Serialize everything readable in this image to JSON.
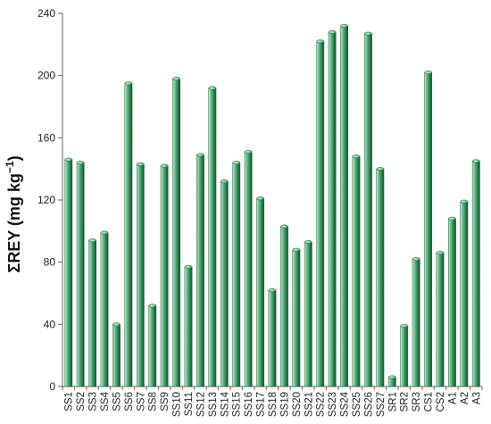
{
  "chart_data": {
    "type": "bar",
    "ylabel": "ΣREY (mg kg",
    "ylabel_sup": "−1",
    "ylabel_close": ")",
    "ylim": [
      0,
      240
    ],
    "yticks": [
      0,
      40,
      80,
      120,
      160,
      200,
      240
    ],
    "grid": false,
    "legend": "none",
    "bar_color": "#2e8b57",
    "categories": [
      "SS1",
      "SS2",
      "SS3",
      "SS4",
      "SS5",
      "SS6",
      "SS7",
      "SS8",
      "SS9",
      "SS10",
      "SS11",
      "SS12",
      "SS13",
      "SS14",
      "SS15",
      "SS16",
      "SS17",
      "SS18",
      "SS19",
      "SS20",
      "SS21",
      "SS22",
      "SS23",
      "SS24",
      "SS25",
      "SS26",
      "SS27",
      "SR1",
      "SR2",
      "SR3",
      "CS1",
      "CS2",
      "A1",
      "A2",
      "A3"
    ],
    "values": [
      146,
      144,
      94,
      99,
      40,
      195,
      143,
      52,
      142,
      198,
      77,
      149,
      192,
      132,
      144,
      151,
      121,
      62,
      103,
      88,
      93,
      222,
      228,
      232,
      148,
      227,
      140,
      6,
      39,
      82,
      202,
      86,
      108,
      119,
      145
    ]
  }
}
